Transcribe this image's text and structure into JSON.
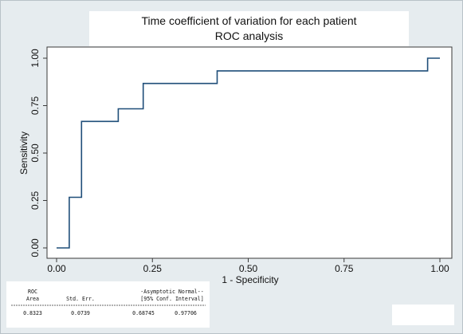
{
  "chart_data": {
    "type": "line",
    "title": "Time coefficient of variation for each patient",
    "subtitle": "ROC analysis",
    "xlabel": "1 - Specificity",
    "ylabel": "Sensitivity",
    "xlim": [
      0,
      1
    ],
    "ylim": [
      0,
      1
    ],
    "x_ticks": [
      "0.00",
      "0.25",
      "0.50",
      "0.75",
      "1.00"
    ],
    "y_ticks": [
      "0.00",
      "0.25",
      "0.50",
      "0.75",
      "1.00"
    ],
    "grid": false,
    "series": [
      {
        "color": "#1f4e79",
        "points": [
          [
            0.0,
            0.0
          ],
          [
            0.033,
            0.0
          ],
          [
            0.033,
            0.267
          ],
          [
            0.065,
            0.267
          ],
          [
            0.065,
            0.667
          ],
          [
            0.161,
            0.667
          ],
          [
            0.161,
            0.733
          ],
          [
            0.226,
            0.733
          ],
          [
            0.226,
            0.867
          ],
          [
            0.419,
            0.867
          ],
          [
            0.419,
            0.933
          ],
          [
            0.968,
            0.933
          ],
          [
            0.968,
            1.0
          ],
          [
            1.0,
            1.0
          ]
        ]
      }
    ]
  },
  "stats_table": {
    "header_row1": [
      "ROC",
      "",
      "-Asymptotic Normal--"
    ],
    "header_row2": [
      "Area",
      "Std. Err.",
      "[95% Conf. Interval]"
    ],
    "values": [
      "0.8323",
      "0.0739",
      "0.68745",
      "0.97706"
    ]
  }
}
